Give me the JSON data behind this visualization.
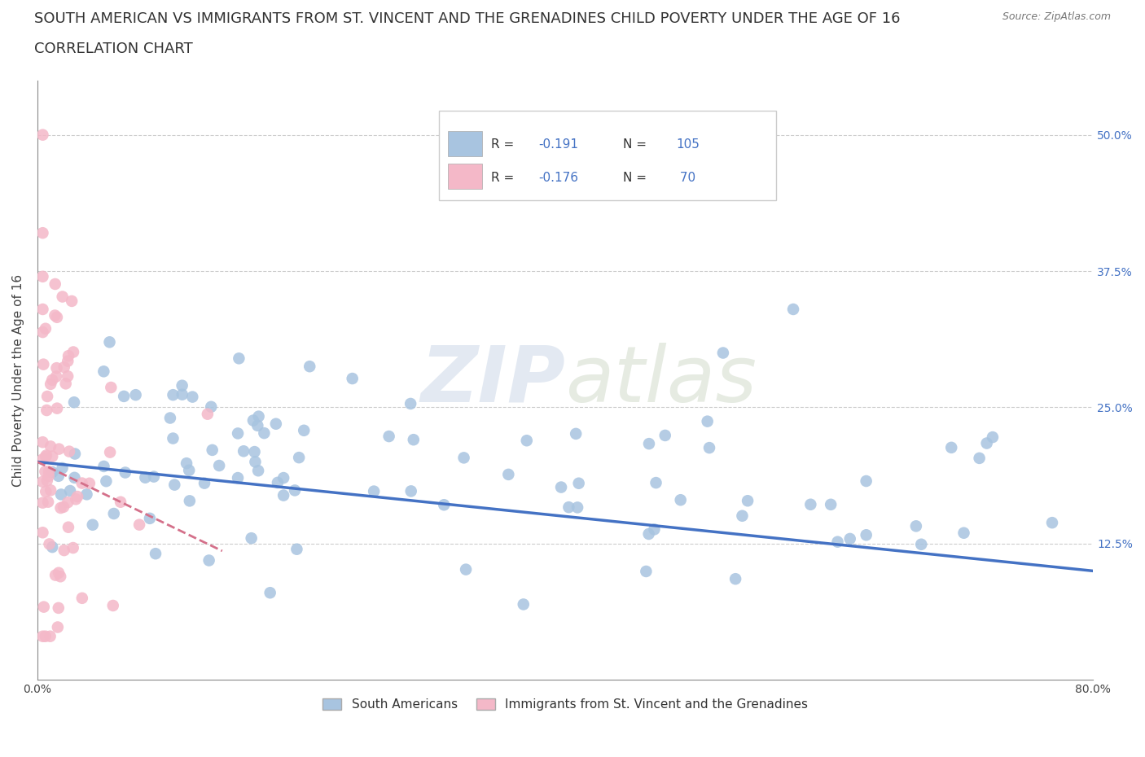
{
  "title_line1": "SOUTH AMERICAN VS IMMIGRANTS FROM ST. VINCENT AND THE GRENADINES CHILD POVERTY UNDER THE AGE OF 16",
  "title_line2": "CORRELATION CHART",
  "source_text": "Source: ZipAtlas.com",
  "ylabel": "Child Poverty Under the Age of 16",
  "xlim": [
    0.0,
    0.8
  ],
  "ylim": [
    0.0,
    0.55
  ],
  "ytick_positions": [
    0.0,
    0.125,
    0.25,
    0.375,
    0.5
  ],
  "ytick_labels": [
    "",
    "12.5%",
    "25.0%",
    "37.5%",
    "50.0%"
  ],
  "r_blue": -0.191,
  "n_blue": 105,
  "r_pink": -0.176,
  "n_pink": 70,
  "blue_color": "#a8c4e0",
  "blue_line_color": "#4472c4",
  "pink_color": "#f4b8c8",
  "pink_line_color": "#d4708a",
  "legend_label_blue": "South Americans",
  "legend_label_pink": "Immigrants from St. Vincent and the Grenadines",
  "watermark_zip": "ZIP",
  "watermark_atlas": "atlas",
  "title_fontsize": 13,
  "axis_label_fontsize": 11,
  "tick_fontsize": 10
}
